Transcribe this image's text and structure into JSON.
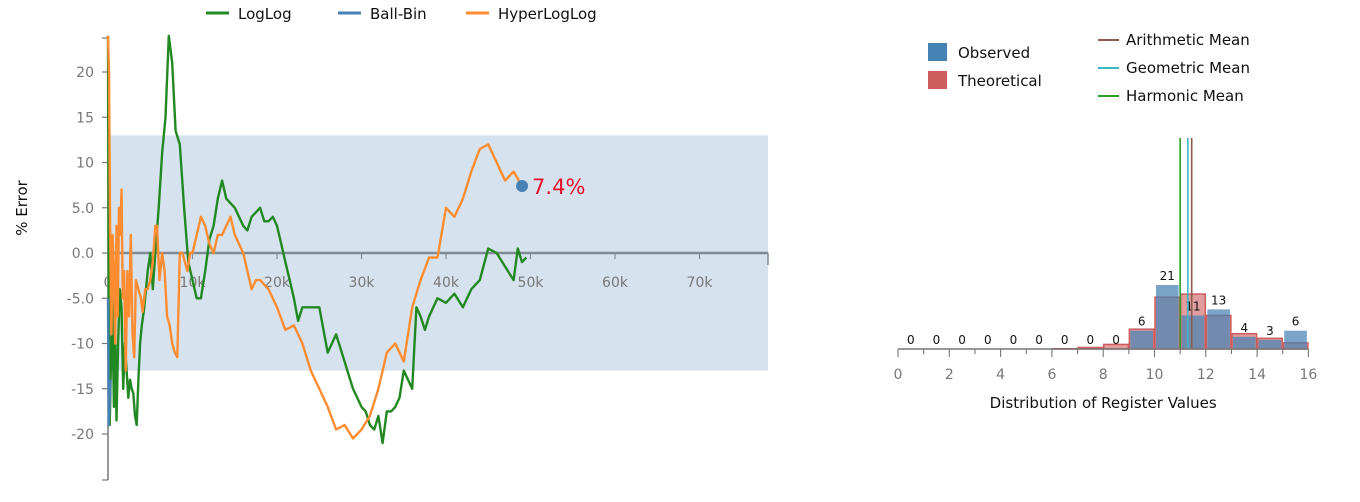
{
  "chart_data": [
    {
      "type": "line",
      "ylabel": "% Error",
      "xlim": [
        0,
        78000
      ],
      "ylim": [
        -24,
        24
      ],
      "x_ticks": [
        "0",
        "10k",
        "20k",
        "30k",
        "40k",
        "50k",
        "60k",
        "70k"
      ],
      "y_ticks": [
        "20",
        "15",
        "10",
        "5.0",
        "0.0",
        "-5.0",
        "-10",
        "-15",
        "-20"
      ],
      "band": [
        -13,
        13
      ],
      "legend": {
        "position": "top"
      },
      "series": [
        {
          "name": "LogLog",
          "color": "#228822",
          "points": [
            [
              0,
              24
            ],
            [
              80,
              -5
            ],
            [
              200,
              -19
            ],
            [
              350,
              -12
            ],
            [
              500,
              -5
            ],
            [
              700,
              -17
            ],
            [
              850,
              -9
            ],
            [
              1000,
              -18.5
            ],
            [
              1200,
              -10
            ],
            [
              1400,
              -4
            ],
            [
              1600,
              -6
            ],
            [
              1800,
              -15
            ],
            [
              2000,
              -10
            ],
            [
              2200,
              -13
            ],
            [
              2400,
              -16
            ],
            [
              2600,
              -14
            ],
            [
              2800,
              -15
            ],
            [
              3000,
              -15.5
            ],
            [
              3200,
              -18
            ],
            [
              3400,
              -19
            ],
            [
              3600,
              -14
            ],
            [
              3800,
              -10
            ],
            [
              4000,
              -8
            ],
            [
              4300,
              -6
            ],
            [
              4700,
              -2
            ],
            [
              5000,
              0
            ],
            [
              5300,
              -4
            ],
            [
              5600,
              0
            ],
            [
              6000,
              5
            ],
            [
              6400,
              11
            ],
            [
              6800,
              15
            ],
            [
              7200,
              24
            ],
            [
              7600,
              21
            ],
            [
              8000,
              13.5
            ],
            [
              8500,
              12
            ],
            [
              9000,
              5
            ],
            [
              9500,
              -1
            ],
            [
              10000,
              -3
            ],
            [
              10500,
              -5
            ],
            [
              11000,
              -5
            ],
            [
              11500,
              -2
            ],
            [
              12000,
              1.5
            ],
            [
              12500,
              3
            ],
            [
              13000,
              6
            ],
            [
              13500,
              8
            ],
            [
              14000,
              6
            ],
            [
              14500,
              5.5
            ],
            [
              15000,
              5
            ],
            [
              15500,
              4
            ],
            [
              16000,
              3
            ],
            [
              16500,
              2.5
            ],
            [
              17000,
              4
            ],
            [
              17500,
              4.5
            ],
            [
              18000,
              5
            ],
            [
              18500,
              3.5
            ],
            [
              19000,
              3.5
            ],
            [
              19500,
              4
            ],
            [
              20000,
              3
            ],
            [
              20500,
              1
            ],
            [
              21000,
              -1
            ],
            [
              21500,
              -3
            ],
            [
              22000,
              -5
            ],
            [
              22500,
              -7.5
            ],
            [
              23000,
              -6
            ],
            [
              24000,
              -6
            ],
            [
              25000,
              -6
            ],
            [
              26000,
              -11
            ],
            [
              27000,
              -9
            ],
            [
              28000,
              -12
            ],
            [
              29000,
              -15
            ],
            [
              30000,
              -17
            ],
            [
              30500,
              -17.5
            ],
            [
              31000,
              -19
            ],
            [
              31500,
              -19.5
            ],
            [
              32000,
              -18
            ],
            [
              32500,
              -21
            ],
            [
              33000,
              -17.5
            ],
            [
              33500,
              -17.5
            ],
            [
              34000,
              -17
            ],
            [
              34500,
              -16
            ],
            [
              35000,
              -13
            ],
            [
              35500,
              -14
            ],
            [
              36000,
              -15
            ],
            [
              36500,
              -6
            ],
            [
              37000,
              -7
            ],
            [
              37500,
              -8.5
            ],
            [
              38000,
              -7
            ],
            [
              39000,
              -5
            ],
            [
              40000,
              -5.5
            ],
            [
              41000,
              -4.5
            ],
            [
              42000,
              -6
            ],
            [
              43000,
              -4
            ],
            [
              44000,
              -3
            ],
            [
              45000,
              0.5
            ],
            [
              46000,
              0
            ],
            [
              47000,
              -1.5
            ],
            [
              48000,
              -3
            ],
            [
              48500,
              0.5
            ],
            [
              49000,
              -1
            ],
            [
              49500,
              -0.5
            ]
          ]
        },
        {
          "name": "Ball-Bin",
          "color": "#4682b4",
          "points": [
            [
              0,
              -5
            ],
            [
              100,
              -19
            ],
            [
              300,
              -14
            ]
          ]
        },
        {
          "name": "HyperLogLog",
          "color": "#ff8c30",
          "points": [
            [
              0,
              24
            ],
            [
              120,
              20
            ],
            [
              250,
              3
            ],
            [
              400,
              -9
            ],
            [
              550,
              2
            ],
            [
              700,
              -2
            ],
            [
              850,
              -10
            ],
            [
              1000,
              3
            ],
            [
              1150,
              -7
            ],
            [
              1300,
              5
            ],
            [
              1450,
              2
            ],
            [
              1600,
              7
            ],
            [
              1750,
              -5
            ],
            [
              1900,
              -2
            ],
            [
              2100,
              -13
            ],
            [
              2300,
              -2
            ],
            [
              2500,
              -7
            ],
            [
              2700,
              2
            ],
            [
              2900,
              -9
            ],
            [
              3100,
              -11.5
            ],
            [
              3300,
              -3
            ],
            [
              3600,
              -4
            ],
            [
              3900,
              -5
            ],
            [
              4100,
              -6.5
            ],
            [
              4400,
              -4
            ],
            [
              4700,
              -4
            ],
            [
              5000,
              -3
            ],
            [
              5300,
              -1
            ],
            [
              5600,
              3
            ],
            [
              5800,
              3
            ],
            [
              6100,
              -3
            ],
            [
              6400,
              0
            ],
            [
              6700,
              -2
            ],
            [
              7000,
              -7
            ],
            [
              7300,
              -8
            ],
            [
              7600,
              -10
            ],
            [
              7900,
              -11
            ],
            [
              8200,
              -11.5
            ],
            [
              8500,
              0
            ],
            [
              8800,
              0
            ],
            [
              9100,
              -1
            ],
            [
              9400,
              -2
            ],
            [
              9700,
              0
            ],
            [
              10000,
              0
            ],
            [
              10500,
              2
            ],
            [
              11000,
              4
            ],
            [
              11500,
              3
            ],
            [
              12000,
              1
            ],
            [
              12500,
              0
            ],
            [
              13000,
              2
            ],
            [
              13500,
              2
            ],
            [
              14000,
              3
            ],
            [
              14500,
              4
            ],
            [
              15000,
              2
            ],
            [
              15500,
              1
            ],
            [
              16000,
              0
            ],
            [
              16500,
              -2
            ],
            [
              17000,
              -4
            ],
            [
              17500,
              -3
            ],
            [
              18000,
              -3
            ],
            [
              19000,
              -4
            ],
            [
              20000,
              -6
            ],
            [
              21000,
              -8.5
            ],
            [
              22000,
              -8
            ],
            [
              23000,
              -10
            ],
            [
              24000,
              -13
            ],
            [
              25000,
              -15
            ],
            [
              26000,
              -17
            ],
            [
              27000,
              -19.5
            ],
            [
              28000,
              -19
            ],
            [
              29000,
              -20.5
            ],
            [
              30000,
              -19.5
            ],
            [
              31000,
              -18
            ],
            [
              32000,
              -15
            ],
            [
              33000,
              -11
            ],
            [
              34000,
              -10
            ],
            [
              35000,
              -12
            ],
            [
              36000,
              -6
            ],
            [
              37000,
              -3
            ],
            [
              38000,
              -0.5
            ],
            [
              39000,
              -0.5
            ],
            [
              40000,
              5
            ],
            [
              41000,
              4
            ],
            [
              42000,
              6
            ],
            [
              43000,
              9
            ],
            [
              44000,
              11.5
            ],
            [
              45000,
              12
            ],
            [
              46000,
              10
            ],
            [
              47000,
              8
            ],
            [
              48000,
              9
            ],
            [
              49000,
              7.4
            ]
          ]
        }
      ],
      "current_point": {
        "x": 49000,
        "y": 7.4,
        "label": "7.4%",
        "color": "#e8102a",
        "dot_color": "#4682b4"
      }
    },
    {
      "type": "bar",
      "xlabel": "Distribution of Register Values",
      "xlim": [
        0,
        16
      ],
      "x_ticks": [
        "0",
        "2",
        "4",
        "6",
        "8",
        "10",
        "12",
        "14",
        "16"
      ],
      "categories": [
        0,
        1,
        2,
        3,
        4,
        5,
        6,
        7,
        8,
        9,
        10,
        11,
        12,
        13,
        14,
        15
      ],
      "observed": [
        0,
        0,
        0,
        0,
        0,
        0,
        0,
        0,
        0,
        6,
        21,
        11,
        13,
        4,
        3,
        6
      ],
      "theoretical": [
        0,
        0,
        0,
        0,
        0,
        0,
        0.1,
        0.5,
        1.5,
        6.5,
        17,
        18,
        11,
        5,
        3.5,
        2
      ],
      "count_labels": [
        "0",
        "0",
        "0",
        "0",
        "0",
        "0",
        "0",
        "0",
        "0",
        "6",
        "21",
        "11",
        "13",
        "4",
        "3",
        "6"
      ],
      "ylim": [
        0,
        25
      ],
      "means": [
        {
          "name": "Arithmetic Mean",
          "value": 11.45,
          "color": "#8b5a4a"
        },
        {
          "name": "Geometric Mean",
          "value": 11.3,
          "color": "#3cb8c8"
        },
        {
          "name": "Harmonic Mean",
          "value": 11.0,
          "color": "#2ca02c"
        }
      ],
      "legend": [
        {
          "name": "Observed",
          "color": "#4682b4"
        },
        {
          "name": "Theoretical",
          "color": "#cd5c5c"
        }
      ]
    }
  ]
}
